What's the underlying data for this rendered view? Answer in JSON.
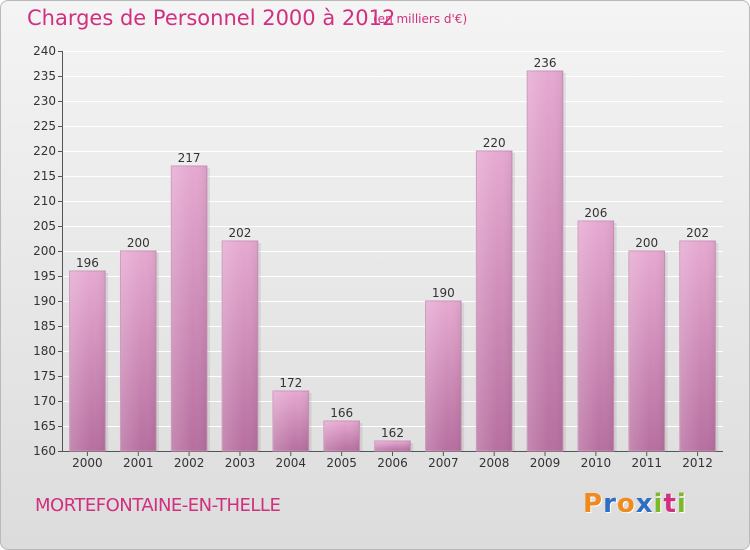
{
  "title": "Charges de Personnel 2000 à 2012",
  "subtitle": "(en milliers d'€)",
  "place": "MORTEFONTAINE-EN-THELLE",
  "logo": {
    "letters": [
      "P",
      "r",
      "o",
      "x",
      "i",
      "t",
      "i"
    ],
    "colors": [
      "#f08a1c",
      "#2e6fc4",
      "#f08a1c",
      "#2e6fc4",
      "#7cb829",
      "#d12f7f",
      "#7cb829"
    ]
  },
  "colors": {
    "accent": "#d12f7f",
    "bar_top": "#e6a9d1",
    "bar_bottom": "#b76fa0"
  },
  "chart_data": {
    "type": "bar",
    "categories": [
      "2000",
      "2001",
      "2002",
      "2003",
      "2004",
      "2005",
      "2006",
      "2007",
      "2008",
      "2009",
      "2010",
      "2011",
      "2012"
    ],
    "values": [
      196,
      200,
      217,
      202,
      172,
      166,
      162,
      190,
      220,
      236,
      206,
      200,
      202
    ],
    "data_labels": [
      "196",
      "200",
      "217",
      "202",
      "172",
      "166",
      "162",
      "190",
      "220",
      "236",
      "206",
      "200",
      "202"
    ],
    "ylim": [
      160,
      240
    ],
    "yticks": [
      160,
      165,
      170,
      175,
      180,
      185,
      190,
      195,
      200,
      205,
      210,
      215,
      220,
      225,
      230,
      235,
      240
    ],
    "ytick_labels": [
      "160",
      "165",
      "170",
      "175",
      "180",
      "185",
      "190",
      "195",
      "200",
      "205",
      "210",
      "215",
      "220",
      "225",
      "230",
      "235",
      "240"
    ],
    "grid": true,
    "legend": false
  }
}
